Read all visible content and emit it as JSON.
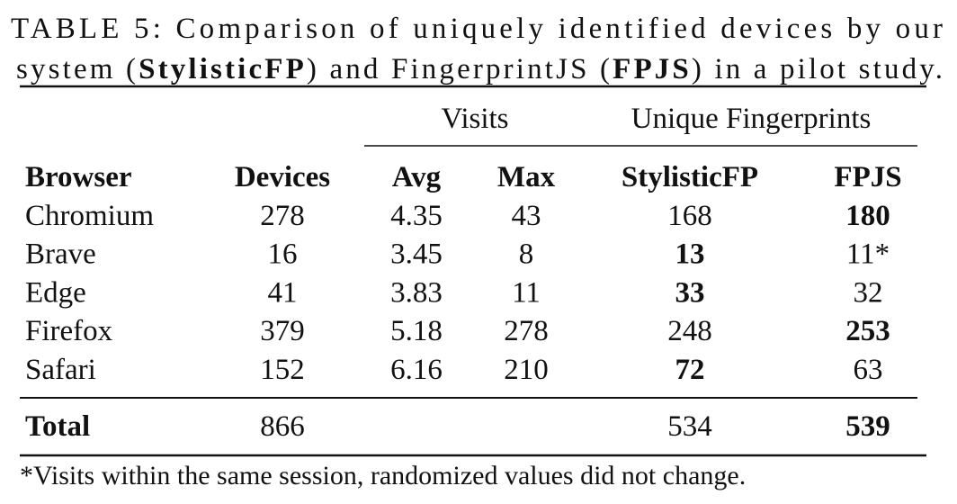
{
  "caption": [
    "TABLE 5: Comparison of uniquely identified devices by our",
    "system (",
    "StylisticFP",
    ") and FingerprintJS (",
    "FPJS",
    ") in a pilot study."
  ],
  "table": {
    "group_headers": [
      "Visits",
      "Unique Fingerprints"
    ],
    "columns": [
      "Browser",
      "Devices",
      "Avg",
      "Max",
      "StylisticFP",
      "FPJS"
    ],
    "rows": [
      [
        "Chromium",
        "278",
        "4.35",
        "43",
        "168",
        "180"
      ],
      [
        "Brave",
        "16",
        "3.45",
        "8",
        "13",
        "11*"
      ],
      [
        "Edge",
        "41",
        "3.83",
        "11",
        "33",
        "32"
      ],
      [
        "Firefox",
        "379",
        "5.18",
        "278",
        "248",
        "253"
      ],
      [
        "Safari",
        "152",
        "6.16",
        "210",
        "72",
        "63"
      ]
    ],
    "total": {
      "label": "Total",
      "devices": "866",
      "stylisticfp": "534",
      "fpjs": "539"
    }
  },
  "footnote": "*Visits within the same session, randomized values did not change."
}
